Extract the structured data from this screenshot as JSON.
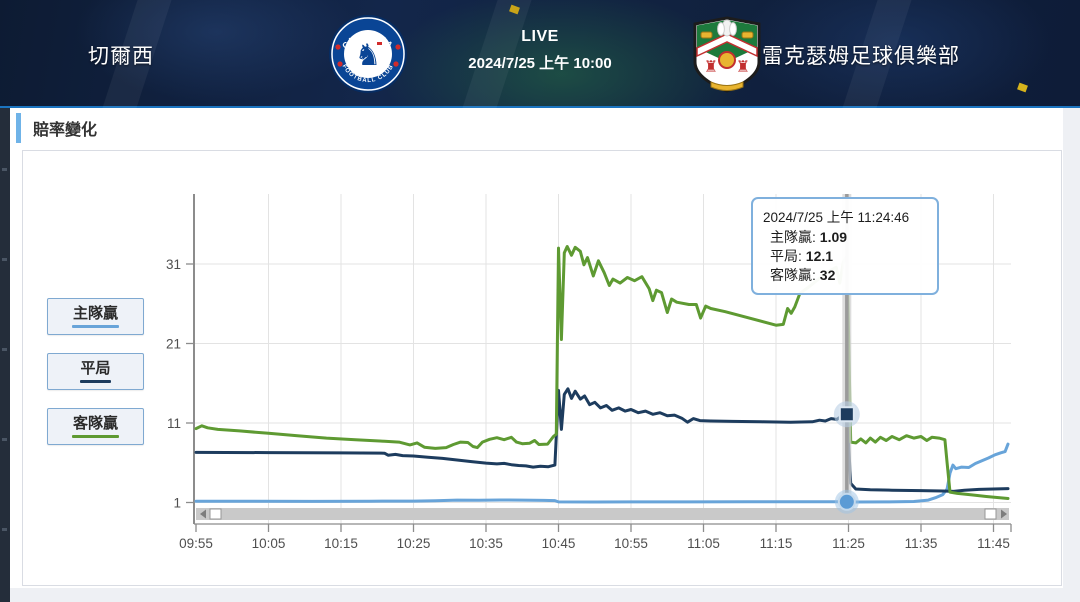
{
  "header": {
    "home_team": "切爾西",
    "away_team": "雷克瑟姆足球俱樂部",
    "live_label": "LIVE",
    "match_time": "2024/7/25 上午 10:00",
    "home_badge": "chelsea-crest",
    "away_badge": "wrexham-crest"
  },
  "section": {
    "title": "賠率變化"
  },
  "legend": [
    {
      "label": "主隊贏",
      "color": "#68a4d9"
    },
    {
      "label": "平局",
      "color": "#1d3c5e"
    },
    {
      "label": "客隊贏",
      "color": "#5e9a32"
    }
  ],
  "tooltip": {
    "timestamp": "2024/7/25 上午 11:24:46",
    "rows": [
      {
        "label": "主隊贏",
        "value": "1.09"
      },
      {
        "label": "平局",
        "value": "12.1"
      },
      {
        "label": "客隊贏",
        "value": "32"
      }
    ]
  },
  "colors": {
    "grid": "#e3e3e3",
    "axis": "#8c8c8c",
    "tick_text": "#4f4f4f",
    "crosshair": "#9b9b9b",
    "scrollbar_track": "#c9c9c9"
  },
  "chart_data": {
    "type": "line",
    "title": "賠率變化",
    "xlabel": "",
    "ylabel": "",
    "x_unit": "minutes after 09:55",
    "x_ticks": [
      "09:55",
      "10:05",
      "10:15",
      "10:25",
      "10:35",
      "10:45",
      "10:55",
      "11:05",
      "11:15",
      "11:25",
      "11:35",
      "11:45"
    ],
    "y_ticks": [
      1,
      11,
      21,
      31
    ],
    "ylim": [
      1,
      34
    ],
    "xlim": [
      0,
      112
    ],
    "grid": true,
    "legend_position": "left",
    "series": [
      {
        "name": "主隊贏",
        "color": "#68a4d9",
        "points": [
          [
            0,
            1.15
          ],
          [
            8,
            1.15
          ],
          [
            16,
            1.14
          ],
          [
            24,
            1.16
          ],
          [
            30,
            1.18
          ],
          [
            33,
            1.22
          ],
          [
            36,
            1.3
          ],
          [
            39,
            1.28
          ],
          [
            42,
            1.32
          ],
          [
            45,
            1.3
          ],
          [
            48,
            1.27
          ],
          [
            49.5,
            1.24
          ],
          [
            50,
            1.07
          ],
          [
            55,
            1.06
          ],
          [
            60,
            1.07
          ],
          [
            68,
            1.08
          ],
          [
            76,
            1.09
          ],
          [
            85,
            1.09
          ],
          [
            89.8,
            1.09
          ],
          [
            90.5,
            1.06
          ],
          [
            95,
            1.08
          ],
          [
            99,
            1.12
          ],
          [
            101,
            1.3
          ],
          [
            102,
            1.6
          ],
          [
            103,
            2.0
          ],
          [
            103.6,
            2.7
          ],
          [
            104,
            4.7
          ],
          [
            104.4,
            5.7
          ],
          [
            104.8,
            5.25
          ],
          [
            105.6,
            5.45
          ],
          [
            106.6,
            5.4
          ],
          [
            107.5,
            5.9
          ],
          [
            108.4,
            6.25
          ],
          [
            109.3,
            6.6
          ],
          [
            110.2,
            7.0
          ],
          [
            111,
            7.25
          ],
          [
            111.6,
            7.4
          ],
          [
            112,
            8.35
          ]
        ]
      },
      {
        "name": "平局",
        "color": "#1d3c5e",
        "points": [
          [
            0,
            7.3
          ],
          [
            10,
            7.28
          ],
          [
            20,
            7.24
          ],
          [
            26,
            7.2
          ],
          [
            26.5,
            6.95
          ],
          [
            27.5,
            7.05
          ],
          [
            28.5,
            6.9
          ],
          [
            30,
            6.85
          ],
          [
            32,
            6.7
          ],
          [
            34,
            6.55
          ],
          [
            36,
            6.35
          ],
          [
            38,
            6.15
          ],
          [
            40,
            5.95
          ],
          [
            41.5,
            5.85
          ],
          [
            42.5,
            5.92
          ],
          [
            43.5,
            5.75
          ],
          [
            44.5,
            5.65
          ],
          [
            45.5,
            5.6
          ],
          [
            46.5,
            5.45
          ],
          [
            47.5,
            5.57
          ],
          [
            48.6,
            5.5
          ],
          [
            49.5,
            5.7
          ],
          [
            50,
            15.1
          ],
          [
            50.4,
            10.2
          ],
          [
            50.8,
            14.6
          ],
          [
            51.3,
            15.3
          ],
          [
            51.8,
            14.1
          ],
          [
            52.3,
            15.0
          ],
          [
            53,
            14.0
          ],
          [
            53.6,
            14.4
          ],
          [
            54.3,
            13.3
          ],
          [
            55,
            13.6
          ],
          [
            55.8,
            12.9
          ],
          [
            56.6,
            13.2
          ],
          [
            57.4,
            12.6
          ],
          [
            58.3,
            12.9
          ],
          [
            59.2,
            12.5
          ],
          [
            60,
            12.7
          ],
          [
            61,
            12.3
          ],
          [
            62,
            12.5
          ],
          [
            63,
            12.1
          ],
          [
            64,
            12.3
          ],
          [
            65,
            11.9
          ],
          [
            66,
            12.0
          ],
          [
            67,
            11.6
          ],
          [
            67.8,
            11.1
          ],
          [
            68.6,
            11.55
          ],
          [
            69.5,
            11.3
          ],
          [
            71,
            11.25
          ],
          [
            74,
            11.2
          ],
          [
            78,
            11.15
          ],
          [
            82,
            11.1
          ],
          [
            85,
            11.15
          ],
          [
            86,
            11.35
          ],
          [
            86.8,
            11.25
          ],
          [
            87.6,
            11.55
          ],
          [
            88.4,
            11.45
          ],
          [
            89.1,
            11.9
          ],
          [
            89.8,
            12.1
          ],
          [
            90.3,
            3.4
          ],
          [
            91,
            2.7
          ],
          [
            93,
            2.6
          ],
          [
            96,
            2.55
          ],
          [
            100,
            2.5
          ],
          [
            103,
            2.45
          ],
          [
            104.5,
            2.4
          ],
          [
            106,
            2.55
          ],
          [
            108,
            2.65
          ],
          [
            112,
            2.75
          ]
        ]
      },
      {
        "name": "客隊贏",
        "color": "#5e9a32",
        "points": [
          [
            0,
            10.3
          ],
          [
            0.8,
            10.65
          ],
          [
            1.6,
            10.4
          ],
          [
            3,
            10.2
          ],
          [
            6,
            10.0
          ],
          [
            10,
            9.7
          ],
          [
            14,
            9.4
          ],
          [
            18,
            9.1
          ],
          [
            22,
            8.9
          ],
          [
            26,
            8.7
          ],
          [
            28,
            8.6
          ],
          [
            29.5,
            8.25
          ],
          [
            30.5,
            8.5
          ],
          [
            31.5,
            7.95
          ],
          [
            33,
            7.8
          ],
          [
            34.5,
            7.9
          ],
          [
            35.5,
            8.3
          ],
          [
            36.5,
            8.6
          ],
          [
            37.5,
            8.55
          ],
          [
            38.2,
            8.05
          ],
          [
            38.8,
            7.9
          ],
          [
            39.5,
            8.6
          ],
          [
            40.5,
            8.95
          ],
          [
            41.5,
            9.15
          ],
          [
            42.5,
            8.9
          ],
          [
            43.5,
            9.2
          ],
          [
            44.2,
            8.6
          ],
          [
            45,
            8.4
          ],
          [
            46,
            8.45
          ],
          [
            46.7,
            8.8
          ],
          [
            47.3,
            8.3
          ],
          [
            48.5,
            8.35
          ],
          [
            49.3,
            9.3
          ],
          [
            49.7,
            9.6
          ],
          [
            50,
            33.0
          ],
          [
            50.4,
            21.5
          ],
          [
            50.8,
            32.4
          ],
          [
            51.2,
            33.2
          ],
          [
            51.8,
            32.1
          ],
          [
            52.3,
            33.1
          ],
          [
            53,
            32.6
          ],
          [
            53.5,
            30.9
          ],
          [
            54,
            31.8
          ],
          [
            54.8,
            29.5
          ],
          [
            55.5,
            31.4
          ],
          [
            56.3,
            29.9
          ],
          [
            57,
            28.3
          ],
          [
            57.5,
            29.1
          ],
          [
            58.5,
            28.6
          ],
          [
            59.5,
            29.3
          ],
          [
            60.5,
            28.9
          ],
          [
            61.5,
            29.4
          ],
          [
            62.5,
            27.9
          ],
          [
            63,
            26.4
          ],
          [
            63.5,
            27.7
          ],
          [
            64.2,
            27.4
          ],
          [
            65,
            24.9
          ],
          [
            65.6,
            26.6
          ],
          [
            66.3,
            26.2
          ],
          [
            68,
            25.9
          ],
          [
            69,
            25.9
          ],
          [
            69.6,
            24.2
          ],
          [
            70.3,
            25.7
          ],
          [
            71,
            25.4
          ],
          [
            73,
            25.0
          ],
          [
            80,
            23.3
          ],
          [
            81,
            23.4
          ],
          [
            81.6,
            25.4
          ],
          [
            82.1,
            24.8
          ],
          [
            82.6,
            25.6
          ],
          [
            83.3,
            27.3
          ],
          [
            84.5,
            28.1
          ],
          [
            86,
            29.2
          ],
          [
            87.5,
            30.2
          ],
          [
            88.3,
            30.6
          ],
          [
            88.8,
            28.6
          ],
          [
            89.3,
            31.3
          ],
          [
            89.8,
            32.0
          ],
          [
            90.3,
            8.6
          ],
          [
            91,
            8.5
          ],
          [
            91.7,
            9.0
          ],
          [
            92.4,
            8.5
          ],
          [
            93,
            9.1
          ],
          [
            93.7,
            8.6
          ],
          [
            94.4,
            9.2
          ],
          [
            95.2,
            8.8
          ],
          [
            96,
            9.3
          ],
          [
            97,
            8.9
          ],
          [
            98,
            9.4
          ],
          [
            99,
            9.1
          ],
          [
            100,
            9.3
          ],
          [
            100.8,
            8.8
          ],
          [
            101.5,
            9.2
          ],
          [
            102.5,
            9.1
          ],
          [
            103.3,
            8.9
          ],
          [
            103.6,
            6.0
          ],
          [
            104,
            2.3
          ],
          [
            105,
            2.15
          ],
          [
            107,
            1.95
          ],
          [
            109,
            1.75
          ],
          [
            112,
            1.5
          ]
        ]
      }
    ],
    "crosshair": {
      "t": 89.77,
      "time_label": "11:24:46",
      "markers": [
        {
          "series": "平局",
          "value": 12.1,
          "shape": "square"
        },
        {
          "series": "主隊贏",
          "value": 1.09,
          "shape": "circle"
        }
      ]
    },
    "scrollbar": {
      "visible": true,
      "orientation": "horizontal"
    }
  }
}
